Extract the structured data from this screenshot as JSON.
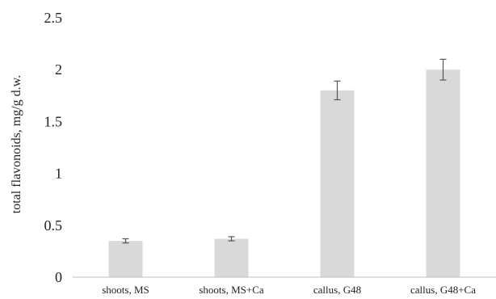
{
  "chart_data": {
    "type": "bar",
    "title": "",
    "xlabel": "",
    "ylabel": "total flavonoids, mg/g d.w.",
    "categories": [
      "shoots, MS",
      "shoots, MS+Ca",
      "callus, G48",
      "callus, G48+Ca"
    ],
    "values": [
      0.35,
      0.37,
      1.8,
      2.0
    ],
    "error": [
      0.02,
      0.02,
      0.09,
      0.1
    ],
    "ylim": [
      0,
      2.5
    ],
    "yticks": [
      "0",
      "0.5",
      "1",
      "1.5",
      "2",
      "2.5"
    ],
    "grid": false,
    "legend": "none",
    "colors": {
      "bar": "#d9d9d9",
      "error_bar": "#555555",
      "axis": "#bfbfbf",
      "text": "#222222"
    }
  }
}
